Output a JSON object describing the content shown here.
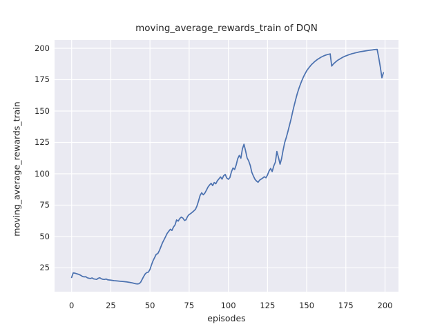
{
  "style": {
    "figure_bg": "#FFFFFF",
    "plot_bg": "#EAEAF2",
    "grid_color": "#FFFFFF",
    "text_color": "#262626",
    "line_color": "#4C72B0"
  },
  "chart_data": {
    "type": "line",
    "title": "moving_average_rewards_train of DQN",
    "xlabel": "episodes",
    "ylabel": "moving_average_rewards_train",
    "grid": true,
    "legend": "none",
    "x_ticks": [
      0,
      25,
      50,
      75,
      100,
      125,
      150,
      175,
      200
    ],
    "y_ticks": [
      25,
      50,
      75,
      100,
      125,
      150,
      175,
      200
    ],
    "xlim": [
      -10.9,
      208.6
    ],
    "ylim": [
      6.0,
      206.6
    ],
    "series": [
      {
        "name": "DQN moving average reward (train)",
        "color": "#4C72B0",
        "points": [
          [
            0,
            17.3
          ],
          [
            1,
            21.0
          ],
          [
            2,
            20.8
          ],
          [
            3,
            20.4
          ],
          [
            4,
            20.0
          ],
          [
            5,
            19.6
          ],
          [
            6,
            18.9
          ],
          [
            7,
            18.1
          ],
          [
            8,
            17.8
          ],
          [
            9,
            18.0
          ],
          [
            10,
            17.1
          ],
          [
            11,
            16.7
          ],
          [
            12,
            16.5
          ],
          [
            13,
            17.0
          ],
          [
            14,
            16.2
          ],
          [
            15,
            16.0
          ],
          [
            16,
            15.8
          ],
          [
            17,
            16.7
          ],
          [
            18,
            17.1
          ],
          [
            19,
            16.3
          ],
          [
            20,
            15.9
          ],
          [
            21,
            15.8
          ],
          [
            22,
            16.1
          ],
          [
            23,
            15.5
          ],
          [
            25,
            15.2
          ],
          [
            27,
            14.8
          ],
          [
            29,
            14.6
          ],
          [
            31,
            14.3
          ],
          [
            33,
            14.1
          ],
          [
            35,
            13.8
          ],
          [
            37,
            13.4
          ],
          [
            39,
            12.9
          ],
          [
            40,
            12.6
          ],
          [
            41,
            12.3
          ],
          [
            42,
            12.2
          ],
          [
            43,
            12.4
          ],
          [
            44,
            13.5
          ],
          [
            45,
            15.8
          ],
          [
            46,
            18.2
          ],
          [
            47,
            20.3
          ],
          [
            48,
            21.3
          ],
          [
            49,
            21.6
          ],
          [
            50,
            23.8
          ],
          [
            51,
            27.5
          ],
          [
            52,
            30.8
          ],
          [
            53,
            33.3
          ],
          [
            54,
            35.8
          ],
          [
            55,
            36.4
          ],
          [
            56,
            38.8
          ],
          [
            57,
            42.0
          ],
          [
            58,
            45.0
          ],
          [
            59,
            47.5
          ],
          [
            60,
            50.0
          ],
          [
            61,
            52.5
          ],
          [
            62,
            54.2
          ],
          [
            63,
            55.8
          ],
          [
            64,
            54.8
          ],
          [
            65,
            57.5
          ],
          [
            66,
            59.3
          ],
          [
            67,
            63.2
          ],
          [
            68,
            62.2
          ],
          [
            69,
            64.3
          ],
          [
            70,
            65.4
          ],
          [
            71,
            64.7
          ],
          [
            72,
            62.8
          ],
          [
            73,
            63.3
          ],
          [
            74,
            66.0
          ],
          [
            75,
            67.5
          ],
          [
            76,
            68.3
          ],
          [
            77,
            69.3
          ],
          [
            78,
            70.4
          ],
          [
            79,
            71.6
          ],
          [
            80,
            74.3
          ],
          [
            81,
            78.3
          ],
          [
            82,
            82.8
          ],
          [
            83,
            84.8
          ],
          [
            84,
            83.2
          ],
          [
            85,
            84.6
          ],
          [
            86,
            86.8
          ],
          [
            87,
            89.3
          ],
          [
            88,
            91.0
          ],
          [
            89,
            92.4
          ],
          [
            90,
            90.6
          ],
          [
            91,
            93.0
          ],
          [
            92,
            92.0
          ],
          [
            93,
            94.4
          ],
          [
            94,
            95.9
          ],
          [
            95,
            97.5
          ],
          [
            96,
            95.7
          ],
          [
            97,
            98.4
          ],
          [
            98,
            99.5
          ],
          [
            99,
            96.6
          ],
          [
            100,
            95.6
          ],
          [
            101,
            97.0
          ],
          [
            102,
            101.5
          ],
          [
            103,
            104.6
          ],
          [
            104,
            103.4
          ],
          [
            105,
            107.0
          ],
          [
            106,
            112.0
          ],
          [
            107,
            114.6
          ],
          [
            108,
            112.4
          ],
          [
            109,
            119.8
          ],
          [
            110,
            123.5
          ],
          [
            111,
            118.2
          ],
          [
            112,
            112.6
          ],
          [
            113,
            110.2
          ],
          [
            114,
            106.6
          ],
          [
            115,
            101.2
          ],
          [
            116,
            98.2
          ],
          [
            117,
            95.6
          ],
          [
            118,
            94.2
          ],
          [
            119,
            93.2
          ],
          [
            120,
            95.0
          ],
          [
            121,
            95.8
          ],
          [
            122,
            96.6
          ],
          [
            123,
            97.6
          ],
          [
            124,
            96.8
          ],
          [
            125,
            99.0
          ],
          [
            126,
            102.2
          ],
          [
            127,
            104.2
          ],
          [
            128,
            101.8
          ],
          [
            129,
            106.2
          ],
          [
            130,
            109.2
          ],
          [
            131,
            117.8
          ],
          [
            132,
            113.0
          ],
          [
            133,
            107.6
          ],
          [
            134,
            112.0
          ],
          [
            135,
            119.0
          ],
          [
            136,
            125.0
          ],
          [
            137,
            129.0
          ],
          [
            138,
            133.5
          ],
          [
            139,
            138.5
          ],
          [
            140,
            143.5
          ],
          [
            141,
            149.0
          ],
          [
            142,
            154.3
          ],
          [
            143,
            159.3
          ],
          [
            144,
            163.8
          ],
          [
            145,
            167.8
          ],
          [
            146,
            171.3
          ],
          [
            147,
            174.4
          ],
          [
            148,
            177.3
          ],
          [
            149,
            179.8
          ],
          [
            150,
            182.0
          ],
          [
            151,
            183.8
          ],
          [
            152,
            185.4
          ],
          [
            153,
            186.9
          ],
          [
            154,
            188.1
          ],
          [
            155,
            189.3
          ],
          [
            156,
            190.3
          ],
          [
            157,
            191.2
          ],
          [
            158,
            192.0
          ],
          [
            159,
            192.8
          ],
          [
            160,
            193.4
          ],
          [
            161,
            194.0
          ],
          [
            162,
            194.5
          ],
          [
            163,
            194.9
          ],
          [
            164,
            195.2
          ],
          [
            165,
            195.5
          ],
          [
            166,
            185.8
          ],
          [
            167,
            187.4
          ],
          [
            168,
            188.6
          ],
          [
            169,
            189.7
          ],
          [
            170,
            190.6
          ],
          [
            171,
            191.4
          ],
          [
            172,
            192.1
          ],
          [
            173,
            192.8
          ],
          [
            174,
            193.4
          ],
          [
            175,
            193.9
          ],
          [
            176,
            194.4
          ],
          [
            177,
            194.9
          ],
          [
            178,
            195.3
          ],
          [
            179,
            195.7
          ],
          [
            180,
            196.0
          ],
          [
            181,
            196.3
          ],
          [
            182,
            196.6
          ],
          [
            183,
            196.9
          ],
          [
            184,
            197.2
          ],
          [
            185,
            197.4
          ],
          [
            186,
            197.6
          ],
          [
            187,
            197.8
          ],
          [
            188,
            198.0
          ],
          [
            189,
            198.2
          ],
          [
            190,
            198.4
          ],
          [
            191,
            198.6
          ],
          [
            192,
            198.7
          ],
          [
            193,
            198.9
          ],
          [
            194,
            199.0
          ],
          [
            195,
            199.1
          ],
          [
            196,
            192.5
          ],
          [
            197,
            185.0
          ],
          [
            198,
            176.5
          ],
          [
            199,
            180.5
          ]
        ]
      }
    ]
  }
}
